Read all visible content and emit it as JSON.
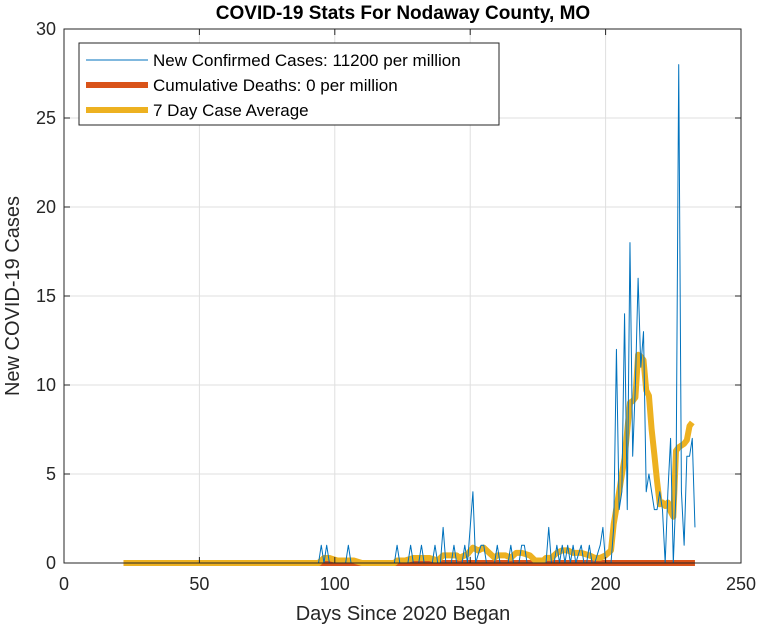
{
  "chart_data": {
    "type": "line",
    "title": "COVID-19 Stats For Nodaway County, MO",
    "xlabel": "Days Since 2020 Began",
    "ylabel": "New COVID-19 Cases",
    "xlim": [
      0,
      250
    ],
    "ylim": [
      0,
      30
    ],
    "xticks": [
      0,
      50,
      100,
      150,
      200,
      250
    ],
    "yticks": [
      0,
      5,
      10,
      15,
      20,
      25,
      30
    ],
    "grid": true,
    "legend_position": "top-left",
    "series": [
      {
        "name": "New Confirmed Cases: 11200 per million",
        "color": "#0072BD",
        "points": [
          [
            22,
            0
          ],
          [
            94,
            0
          ],
          [
            95,
            1
          ],
          [
            96,
            0
          ],
          [
            97,
            1
          ],
          [
            98,
            0
          ],
          [
            100,
            0
          ],
          [
            104,
            0
          ],
          [
            105,
            1
          ],
          [
            106,
            0
          ],
          [
            122,
            0
          ],
          [
            123,
            1
          ],
          [
            124,
            0
          ],
          [
            127,
            0
          ],
          [
            128,
            1
          ],
          [
            129,
            0
          ],
          [
            131,
            0
          ],
          [
            132,
            1
          ],
          [
            133,
            0
          ],
          [
            136,
            0
          ],
          [
            137,
            1
          ],
          [
            138,
            0
          ],
          [
            139,
            0
          ],
          [
            140,
            2
          ],
          [
            141,
            0
          ],
          [
            143,
            0
          ],
          [
            144,
            1
          ],
          [
            145,
            0
          ],
          [
            147,
            0
          ],
          [
            148,
            1
          ],
          [
            149,
            0
          ],
          [
            151,
            4
          ],
          [
            152,
            0
          ],
          [
            154,
            1
          ],
          [
            155,
            1
          ],
          [
            156,
            0
          ],
          [
            159,
            0
          ],
          [
            160,
            1
          ],
          [
            161,
            0
          ],
          [
            164,
            0
          ],
          [
            165,
            1
          ],
          [
            166,
            0
          ],
          [
            168,
            0
          ],
          [
            169,
            1
          ],
          [
            170,
            1
          ],
          [
            171,
            0
          ],
          [
            178,
            0
          ],
          [
            179,
            2
          ],
          [
            180,
            0
          ],
          [
            181,
            0
          ],
          [
            182,
            1
          ],
          [
            183,
            0
          ],
          [
            184,
            1
          ],
          [
            185,
            0
          ],
          [
            186,
            1
          ],
          [
            187,
            0
          ],
          [
            188,
            1
          ],
          [
            189,
            0
          ],
          [
            191,
            1
          ],
          [
            192,
            0
          ],
          [
            193,
            0
          ],
          [
            194,
            1
          ],
          [
            195,
            0
          ],
          [
            196,
            0
          ],
          [
            198,
            1
          ],
          [
            199,
            2
          ],
          [
            200,
            0
          ],
          [
            202,
            0
          ],
          [
            203,
            2
          ],
          [
            204,
            12
          ],
          [
            205,
            3
          ],
          [
            206,
            4
          ],
          [
            207,
            14
          ],
          [
            208,
            3
          ],
          [
            209,
            18
          ],
          [
            210,
            6
          ],
          [
            211,
            10
          ],
          [
            212,
            16
          ],
          [
            213,
            11
          ],
          [
            214,
            13
          ],
          [
            215,
            4
          ],
          [
            216,
            5
          ],
          [
            217,
            4
          ],
          [
            218,
            3
          ],
          [
            219,
            3
          ],
          [
            220,
            4
          ],
          [
            221,
            3
          ],
          [
            222,
            0
          ],
          [
            223,
            4
          ],
          [
            224,
            7
          ],
          [
            225,
            0
          ],
          [
            226,
            4
          ],
          [
            227,
            28
          ],
          [
            228,
            4
          ],
          [
            229,
            1
          ],
          [
            230,
            6
          ],
          [
            231,
            6
          ],
          [
            232,
            7
          ],
          [
            233,
            2
          ]
        ]
      },
      {
        "name": "Cumulative Deaths: 0 per million",
        "color": "#D95319",
        "points": [
          [
            22,
            0
          ],
          [
            233,
            0
          ]
        ]
      },
      {
        "name": "7 Day Case Average",
        "color": "#EDB120",
        "points": [
          [
            22,
            0
          ],
          [
            94,
            0
          ],
          [
            95,
            0.14
          ],
          [
            96,
            0.28
          ],
          [
            98,
            0.28
          ],
          [
            101,
            0.14
          ],
          [
            102,
            0.14
          ],
          [
            104,
            0.14
          ],
          [
            107,
            0.14
          ],
          [
            110,
            0
          ],
          [
            122,
            0
          ],
          [
            123,
            0.14
          ],
          [
            126,
            0.14
          ],
          [
            129,
            0.28
          ],
          [
            132,
            0.28
          ],
          [
            135,
            0.28
          ],
          [
            138,
            0.14
          ],
          [
            140,
            0.43
          ],
          [
            142,
            0.43
          ],
          [
            145,
            0.43
          ],
          [
            146,
            0.29
          ],
          [
            149,
            0.5
          ],
          [
            151,
            0.86
          ],
          [
            153,
            0.7
          ],
          [
            155,
            0.86
          ],
          [
            157,
            0.57
          ],
          [
            159,
            0.29
          ],
          [
            160,
            0.43
          ],
          [
            163,
            0.43
          ],
          [
            165,
            0.29
          ],
          [
            167,
            0.57
          ],
          [
            169,
            0.57
          ],
          [
            172,
            0.43
          ],
          [
            174,
            0.14
          ],
          [
            177,
            0.14
          ],
          [
            178,
            0.29
          ],
          [
            180,
            0.29
          ],
          [
            182,
            0.57
          ],
          [
            184,
            0.71
          ],
          [
            186,
            0.71
          ],
          [
            188,
            0.57
          ],
          [
            191,
            0.57
          ],
          [
            194,
            0.43
          ],
          [
            196,
            0.29
          ],
          [
            198,
            0.29
          ],
          [
            200,
            0.43
          ],
          [
            202,
            0.71
          ],
          [
            203,
            2.2
          ],
          [
            205,
            4
          ],
          [
            207,
            5.9
          ],
          [
            209,
            9
          ],
          [
            210,
            9.1
          ],
          [
            211,
            9.3
          ],
          [
            212,
            11.7
          ],
          [
            213,
            11.6
          ],
          [
            214,
            11.4
          ],
          [
            215,
            9.7
          ],
          [
            216,
            9.4
          ],
          [
            217,
            7.5
          ],
          [
            218,
            6.1
          ],
          [
            219,
            4.6
          ],
          [
            220,
            3.3
          ],
          [
            221,
            3.4
          ],
          [
            222,
            3.2
          ],
          [
            223,
            3.4
          ],
          [
            224,
            2.9
          ],
          [
            225,
            2.6
          ],
          [
            226,
            6.3
          ],
          [
            227,
            6.5
          ],
          [
            228,
            6.6
          ],
          [
            229,
            6.7
          ],
          [
            230,
            6.9
          ],
          [
            231,
            7.7
          ],
          [
            232,
            7.9
          ]
        ]
      }
    ]
  }
}
